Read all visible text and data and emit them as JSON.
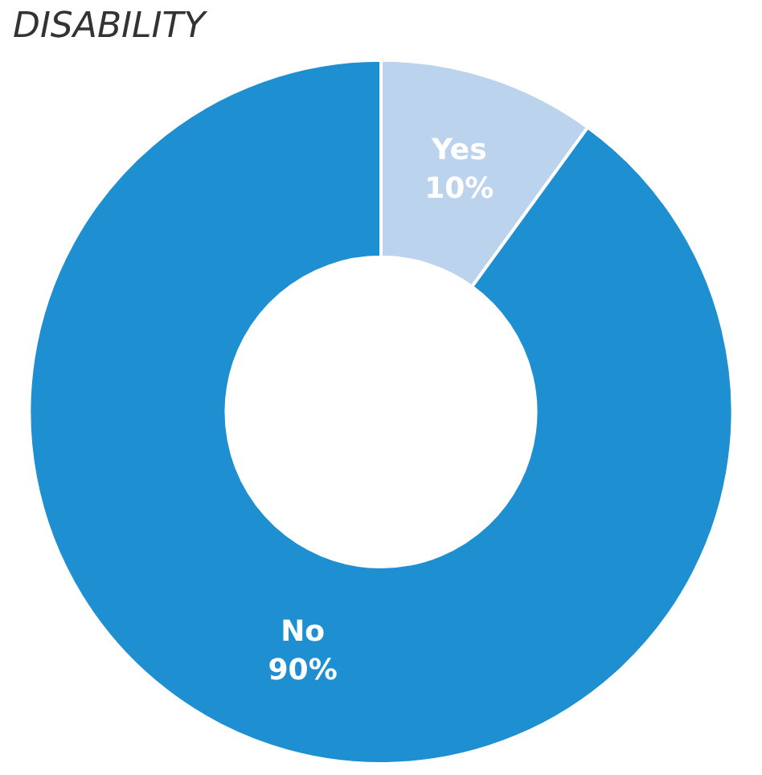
{
  "chart_data": {
    "type": "donut",
    "title": "DISABILITY",
    "categories": [
      "Yes",
      "No"
    ],
    "values": [
      10,
      90
    ],
    "colors": [
      "#bcd3ee",
      "#1e8fd0"
    ],
    "value_labels": [
      "10%",
      "90%"
    ],
    "legend": false
  }
}
